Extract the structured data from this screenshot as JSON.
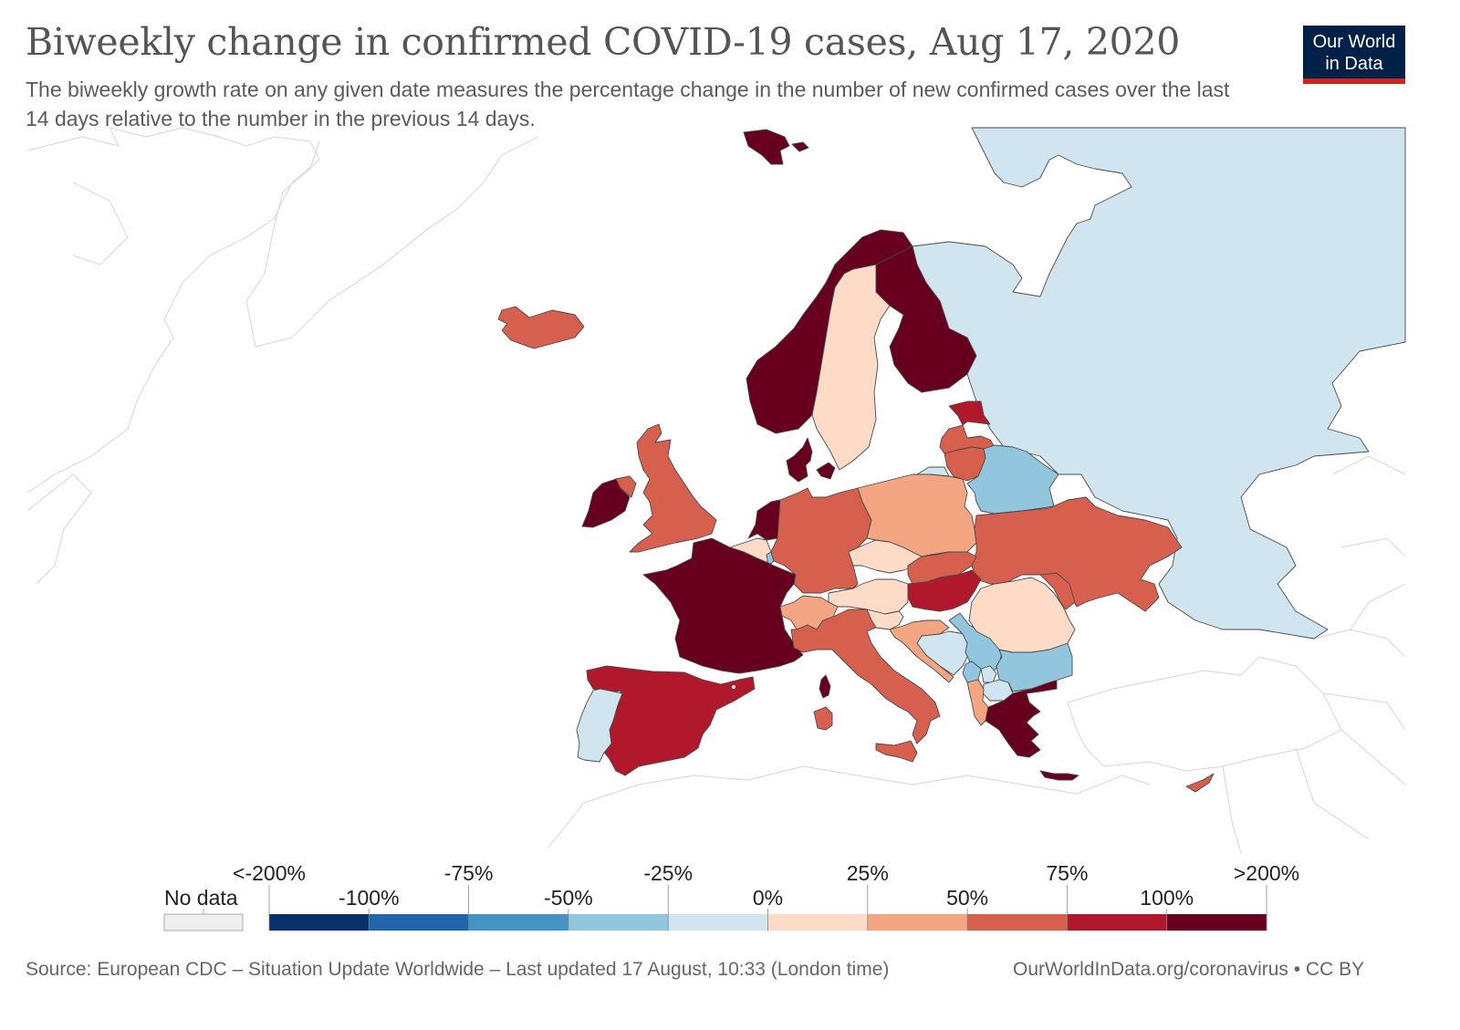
{
  "header": {
    "title": "Biweekly change in confirmed COVID-19 cases, Aug 17, 2020",
    "subtitle": "The biweekly growth rate on any given date measures the percentage change in the number of new confirmed cases over the last 14 days relative to the number in the previous 14 days.",
    "logo_line1": "Our World",
    "logo_line2": "in Data"
  },
  "colors": {
    "no_data": "#eeeeee",
    "bins": [
      "#08306b",
      "#2166ac",
      "#4393c3",
      "#92c5de",
      "#d1e5f0",
      "#fddbc7",
      "#f4a582",
      "#d6604d",
      "#b2182b",
      "#67001f"
    ],
    "logo_bg": "#002147",
    "logo_bar": "#ce261e"
  },
  "legend": {
    "no_data_label": "No data",
    "upper_labels": [
      "<-200%",
      "-75%",
      "-25%",
      "25%",
      "75%",
      ">200%"
    ],
    "lower_labels": [
      "-100%",
      "-50%",
      "0%",
      "50%",
      "100%"
    ],
    "bin_edges": [
      "<-200%",
      "-100%",
      "-75%",
      "-50%",
      "-25%",
      "0%",
      "25%",
      "50%",
      "75%",
      "100%",
      ">200%"
    ]
  },
  "chart_data": {
    "type": "choropleth",
    "title": "Biweekly change in confirmed COVID-19 cases, Aug 17, 2020",
    "region": "Europe",
    "metric": "Biweekly % change in confirmed cases",
    "bins": [
      "<-200% to -100%",
      "-100% to -75%",
      "-75% to -50%",
      "-50% to -25%",
      "-25% to 0%",
      "0% to 25%",
      "25% to 50%",
      "50% to 75%",
      "75% to 100%",
      ">100%"
    ],
    "countries": [
      {
        "name": "Iceland",
        "bin": 7
      },
      {
        "name": "Ireland",
        "bin": 9
      },
      {
        "name": "Northern Ireland (UK)",
        "bin": 7
      },
      {
        "name": "United Kingdom",
        "bin": 7
      },
      {
        "name": "Norway",
        "bin": 9
      },
      {
        "name": "Svalbard",
        "bin": 9
      },
      {
        "name": "Sweden",
        "bin": 5
      },
      {
        "name": "Finland",
        "bin": 9
      },
      {
        "name": "Denmark",
        "bin": 9
      },
      {
        "name": "Estonia",
        "bin": 8
      },
      {
        "name": "Latvia",
        "bin": 7
      },
      {
        "name": "Lithuania",
        "bin": 7
      },
      {
        "name": "Russia (Kaliningrad)",
        "bin": 4
      },
      {
        "name": "Belarus",
        "bin": 3
      },
      {
        "name": "Poland",
        "bin": 6
      },
      {
        "name": "Germany",
        "bin": 7
      },
      {
        "name": "Netherlands",
        "bin": 9
      },
      {
        "name": "Belgium",
        "bin": 5
      },
      {
        "name": "Luxembourg",
        "bin": 3
      },
      {
        "name": "France",
        "bin": 9
      },
      {
        "name": "Spain",
        "bin": 8
      },
      {
        "name": "Portugal",
        "bin": 4
      },
      {
        "name": "Andorra",
        "bin": 5
      },
      {
        "name": "Switzerland",
        "bin": 6
      },
      {
        "name": "Austria",
        "bin": 5
      },
      {
        "name": "Czechia",
        "bin": 5
      },
      {
        "name": "Slovakia",
        "bin": 7
      },
      {
        "name": "Hungary",
        "bin": 8
      },
      {
        "name": "Slovenia",
        "bin": 5
      },
      {
        "name": "Croatia",
        "bin": 6
      },
      {
        "name": "Bosnia and Herzegovina",
        "bin": 4
      },
      {
        "name": "Serbia",
        "bin": 3
      },
      {
        "name": "Montenegro",
        "bin": 3
      },
      {
        "name": "Kosovo",
        "bin": 4
      },
      {
        "name": "North Macedonia",
        "bin": 4
      },
      {
        "name": "Albania",
        "bin": 6
      },
      {
        "name": "Greece",
        "bin": 9
      },
      {
        "name": "Bulgaria",
        "bin": 3
      },
      {
        "name": "Romania",
        "bin": 5
      },
      {
        "name": "Moldova",
        "bin": 7
      },
      {
        "name": "Ukraine",
        "bin": 7
      },
      {
        "name": "Italy",
        "bin": 7
      },
      {
        "name": "Corsica (France)",
        "bin": 9
      },
      {
        "name": "Sardinia (Italy)",
        "bin": 7
      },
      {
        "name": "Cyprus",
        "bin": 7
      },
      {
        "name": "Russia",
        "bin": 4
      }
    ]
  },
  "footer": {
    "source": "Source: European CDC – Situation Update Worldwide – Last updated 17 August, 10:33 (London time)",
    "link": "OurWorldInData.org/coronavirus • CC BY"
  }
}
